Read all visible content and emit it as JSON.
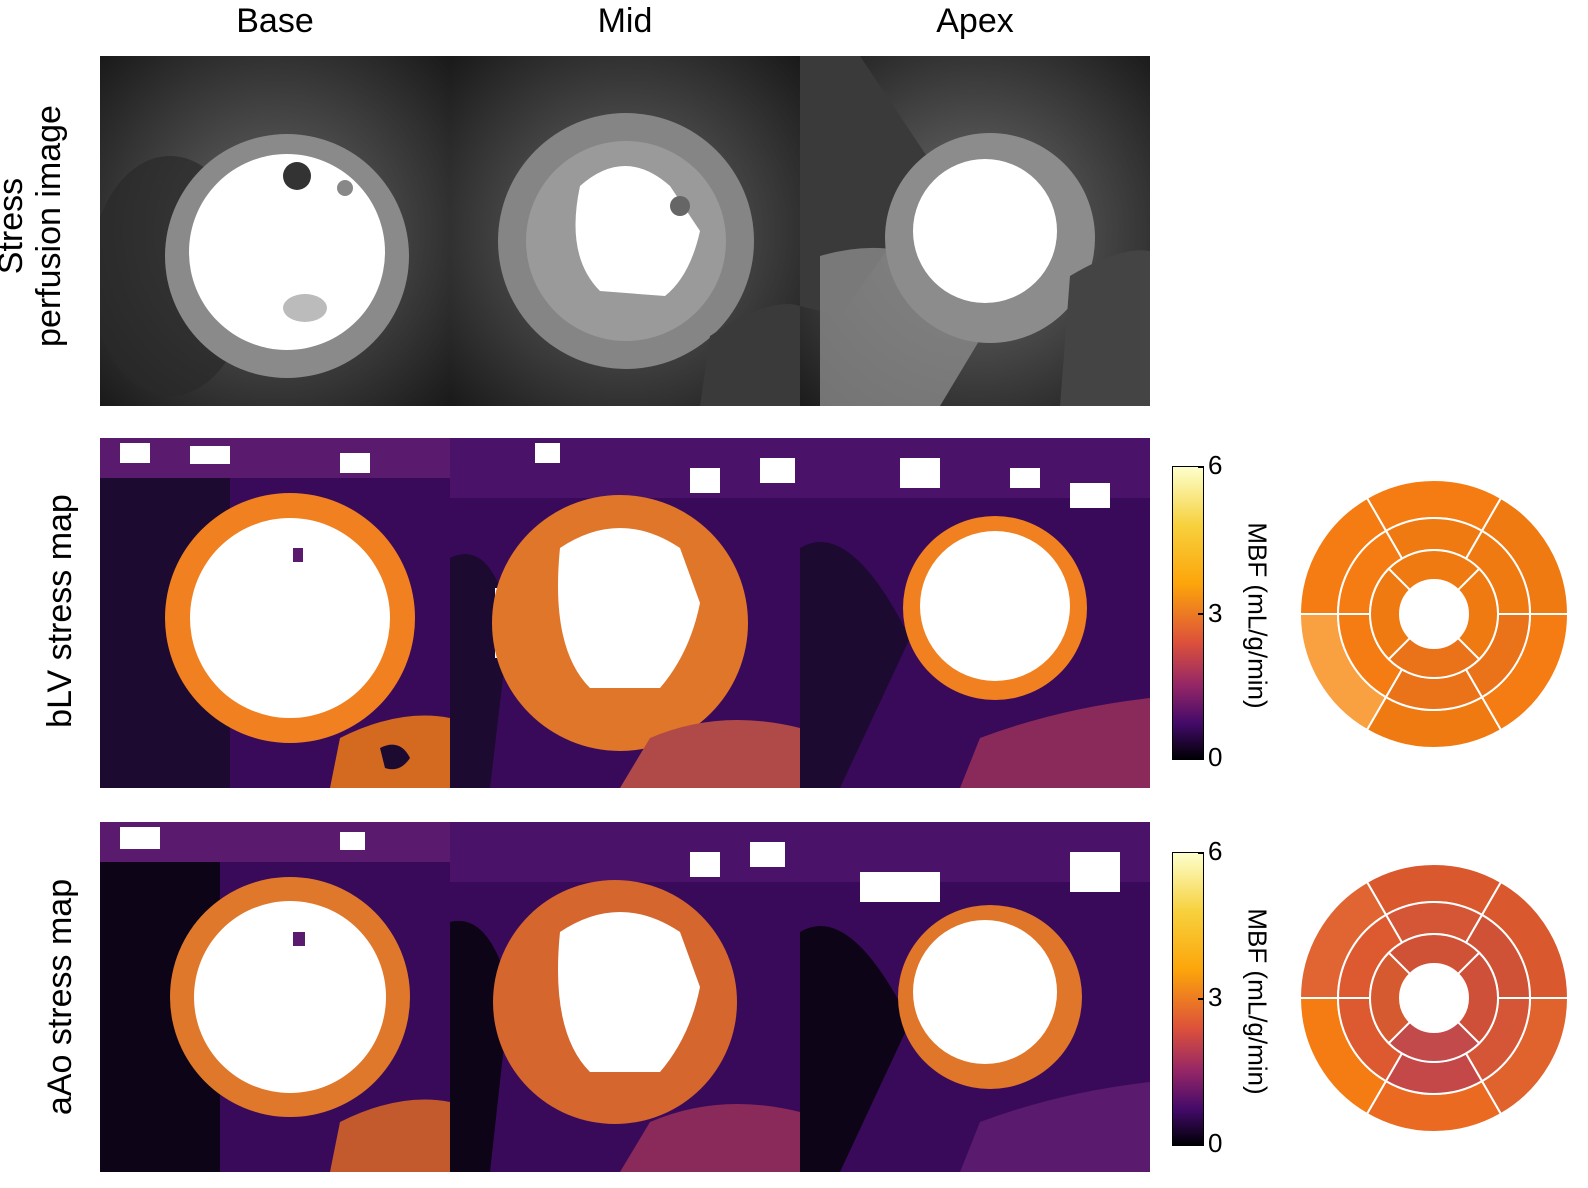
{
  "columns": [
    "Base",
    "Mid",
    "Apex"
  ],
  "rows": [
    {
      "label_line1": "Stress",
      "label_line2": "perfusion image"
    },
    {
      "label_line1": "bLV stress map",
      "label_line2": ""
    },
    {
      "label_line1": "aAo stress map",
      "label_line2": ""
    }
  ],
  "colorbar": {
    "label": "MBF (mL/g/min)",
    "ticks": [
      "6",
      "3",
      "0"
    ],
    "colors": [
      "#fcffa4",
      "#fca50a",
      "#dd513a",
      "#932667",
      "#420a68",
      "#000004"
    ]
  },
  "bullseye_blv": {
    "colors": {
      "outer": [
        "#f57c12",
        "#f57c12",
        "#f9a040",
        "#f07a12",
        "#f57c12",
        "#f07a12"
      ],
      "mid": [
        "#f07a12",
        "#f57c12",
        "#f57c12",
        "#ea7218",
        "#ea7218",
        "#f07a12"
      ],
      "inner": [
        "#f07a12",
        "#f07a12",
        "#ea7218",
        "#f07a12"
      ]
    }
  },
  "bullseye_aao": {
    "colors": {
      "outer": [
        "#d9582e",
        "#e06532",
        "#f57c12",
        "#ea6a22",
        "#e0632e",
        "#d9582e"
      ],
      "mid": [
        "#d45636",
        "#dd5a30",
        "#dd5a30",
        "#c54848",
        "#d45636",
        "#d05236"
      ],
      "inner": [
        "#d05236",
        "#d65a30",
        "#c34a4a",
        "#cf5038"
      ]
    }
  },
  "styles": {
    "ring_stroke": "#ffffff"
  }
}
